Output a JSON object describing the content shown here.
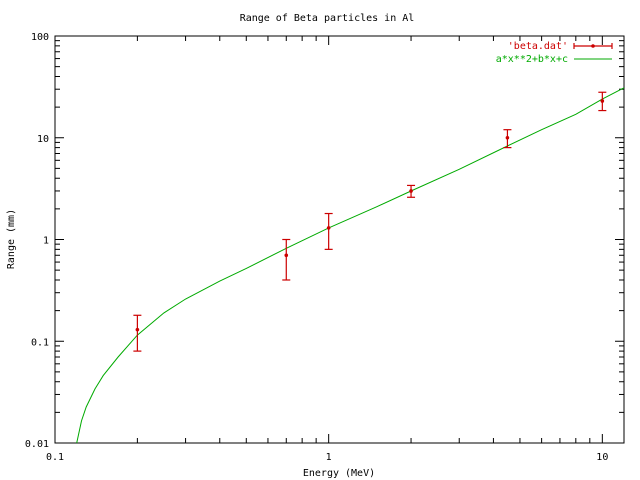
{
  "chart_data": {
    "type": "scatter",
    "title": "Range of Beta particles in Al",
    "xlabel": "Energy (MeV)",
    "ylabel": "Range (mm)",
    "xscale": "log",
    "yscale": "log",
    "xlim": [
      0.1,
      12
    ],
    "ylim": [
      0.01,
      100
    ],
    "x_ticks": [
      0.1,
      1,
      10
    ],
    "x_tick_labels": [
      "0.1",
      "1",
      "10"
    ],
    "y_ticks": [
      0.01,
      0.1,
      1,
      10,
      100
    ],
    "y_tick_labels": [
      "0.01",
      "0.1",
      "1",
      "10",
      "100"
    ],
    "grid": false,
    "legend": "top-right",
    "series": [
      {
        "name": "'beta.dat'",
        "kind": "points-errorbars",
        "color": "#cc0000",
        "x": [
          0.2,
          0.7,
          1.0,
          2.0,
          4.5,
          10.0
        ],
        "y": [
          0.13,
          0.7,
          1.3,
          3.0,
          10.0,
          23.0
        ],
        "yerr_low": [
          0.08,
          0.4,
          0.8,
          2.6,
          8.0,
          18.5
        ],
        "yerr_high": [
          0.18,
          1.0,
          1.8,
          3.4,
          12.0,
          28.0
        ]
      },
      {
        "name": "a*x**2+b*x+c",
        "kind": "line",
        "color": "#00aa00",
        "x": [
          0.12,
          0.125,
          0.13,
          0.14,
          0.15,
          0.17,
          0.2,
          0.25,
          0.3,
          0.4,
          0.5,
          0.7,
          1.0,
          1.5,
          2.0,
          3.0,
          4.5,
          6.0,
          8.0,
          10.0,
          12.0
        ],
        "y": [
          0.01,
          0.0165,
          0.0226,
          0.034,
          0.046,
          0.07,
          0.115,
          0.19,
          0.26,
          0.39,
          0.52,
          0.82,
          1.3,
          2.1,
          3.0,
          4.9,
          8.3,
          12.0,
          17.0,
          24.0,
          31.0
        ]
      }
    ]
  }
}
